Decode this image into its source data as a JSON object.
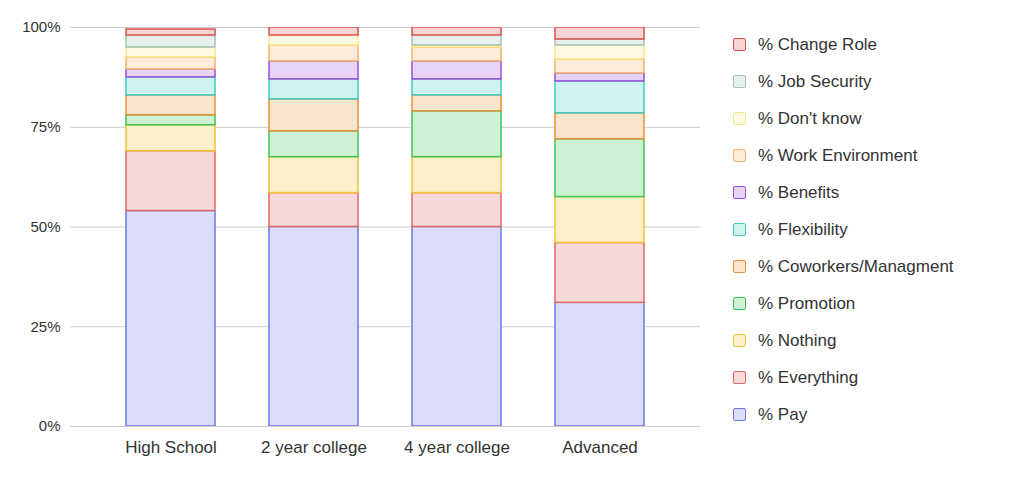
{
  "chart_data": {
    "type": "bar",
    "stacked": true,
    "grid": true,
    "legend": "right",
    "categories": [
      "High School",
      "2 year college",
      "4 year college",
      "Advanced"
    ],
    "ylim": [
      0,
      100
    ],
    "yticks": [
      {
        "value": 0,
        "label": "0%"
      },
      {
        "value": 25,
        "label": "25%"
      },
      {
        "value": 50,
        "label": "50%"
      },
      {
        "value": 75,
        "label": "75%"
      },
      {
        "value": 100,
        "label": "100%"
      }
    ],
    "series": [
      {
        "name": "% Pay",
        "color": "#6d78ea",
        "values": [
          54,
          50,
          50,
          31
        ]
      },
      {
        "name": "% Everything",
        "color": "#e06666",
        "values": [
          15,
          8.5,
          8.5,
          15
        ]
      },
      {
        "name": "% Nothing",
        "color": "#f1c232",
        "values": [
          6.5,
          9,
          9,
          11.5
        ]
      },
      {
        "name": "% Promotion",
        "color": "#3fc456",
        "values": [
          2.5,
          6.5,
          11.5,
          14.5
        ]
      },
      {
        "name": "% Coworkers/Managment",
        "color": "#e69138",
        "values": [
          5,
          8,
          4,
          6.5
        ]
      },
      {
        "name": "% Flexibility",
        "color": "#3ccbbd",
        "values": [
          4.5,
          5,
          4,
          8
        ]
      },
      {
        "name": "% Benefits",
        "color": "#9b4fd9",
        "values": [
          2,
          4.5,
          4.5,
          2
        ]
      },
      {
        "name": "% Work Environment",
        "color": "#f6b26b",
        "values": [
          3,
          4,
          3.5,
          3.5
        ]
      },
      {
        "name": "% Don't know",
        "color": "#f7e68a",
        "values": [
          2.5,
          2.5,
          0.5,
          3.5
        ]
      },
      {
        "name": "% Job Security",
        "color": "#a3c4b5",
        "values": [
          3,
          0,
          2.5,
          1.5
        ]
      },
      {
        "name": "% Change Role",
        "color": "#d9534f",
        "values": [
          1.5,
          2,
          2,
          3
        ]
      }
    ]
  }
}
